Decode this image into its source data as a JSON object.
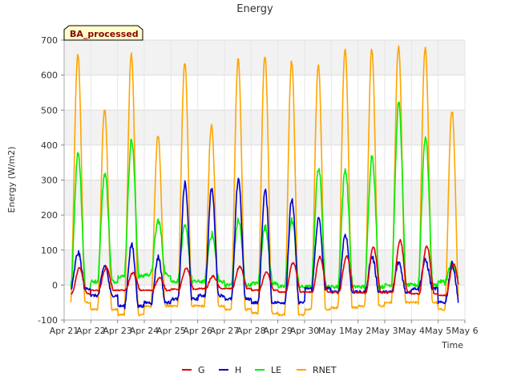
{
  "chart_data": {
    "type": "line",
    "title": "Energy",
    "badge": "BA_processed",
    "xlabel": "Time",
    "ylabel": "Energy (W/m2)",
    "ylim": [
      -100,
      700
    ],
    "yticks": [
      -100,
      0,
      100,
      200,
      300,
      400,
      500,
      600,
      700
    ],
    "xlim": [
      0,
      15
    ],
    "xticks": [
      {
        "x": 0,
        "label": "Apr 21"
      },
      {
        "x": 1,
        "label": "Apr 22"
      },
      {
        "x": 2,
        "label": "Apr 23"
      },
      {
        "x": 3,
        "label": "Apr 24"
      },
      {
        "x": 4,
        "label": "Apr 25"
      },
      {
        "x": 5,
        "label": "Apr 26"
      },
      {
        "x": 6,
        "label": "Apr 27"
      },
      {
        "x": 7,
        "label": "Apr 28"
      },
      {
        "x": 8,
        "label": "Apr 29"
      },
      {
        "x": 9,
        "label": "Apr 30"
      },
      {
        "x": 10,
        "label": "May 1"
      },
      {
        "x": 11,
        "label": "May 2"
      },
      {
        "x": 12,
        "label": "May 3"
      },
      {
        "x": 13,
        "label": "May 4"
      },
      {
        "x": 14,
        "label": "May 5"
      },
      {
        "x": 15,
        "label": "May 6"
      }
    ],
    "x_range_data": [
      0.25,
      14.75
    ],
    "grid": true,
    "legend_position": "bottom",
    "series": [
      {
        "name": "G",
        "color": "#dd0000",
        "daily_peak": [
          48,
          50,
          35,
          20,
          47,
          25,
          53,
          35,
          65,
          80,
          82,
          108,
          128,
          112,
          60
        ],
        "night_level": [
          -25,
          -15,
          -15,
          -15,
          -12,
          -10,
          -10,
          -15,
          -20,
          -20,
          -20,
          -22,
          -20,
          -25,
          -30
        ]
      },
      {
        "name": "H",
        "color": "#0000cc",
        "daily_peak": [
          92,
          55,
          115,
          80,
          290,
          275,
          305,
          270,
          245,
          190,
          145,
          80,
          65,
          70,
          60
        ],
        "night_level": [
          -10,
          -30,
          -60,
          -50,
          -40,
          -30,
          -40,
          -50,
          -50,
          -10,
          -20,
          -20,
          -20,
          -10,
          -50
        ]
      },
      {
        "name": "LE",
        "color": "#00ee00",
        "daily_peak": [
          378,
          320,
          415,
          185,
          165,
          145,
          185,
          165,
          185,
          335,
          330,
          370,
          520,
          425,
          60
        ],
        "night_level": [
          -10,
          10,
          25,
          30,
          10,
          10,
          0,
          5,
          -5,
          -5,
          -5,
          -5,
          0,
          0,
          10
        ]
      },
      {
        "name": "RNET",
        "color": "#ffa500",
        "daily_peak": [
          660,
          505,
          660,
          430,
          635,
          455,
          645,
          655,
          640,
          630,
          675,
          675,
          682,
          680,
          500
        ],
        "night_level": [
          -50,
          -70,
          -85,
          -60,
          -60,
          -60,
          -70,
          -80,
          -85,
          -70,
          -65,
          -60,
          -50,
          -50,
          -70
        ]
      }
    ]
  }
}
